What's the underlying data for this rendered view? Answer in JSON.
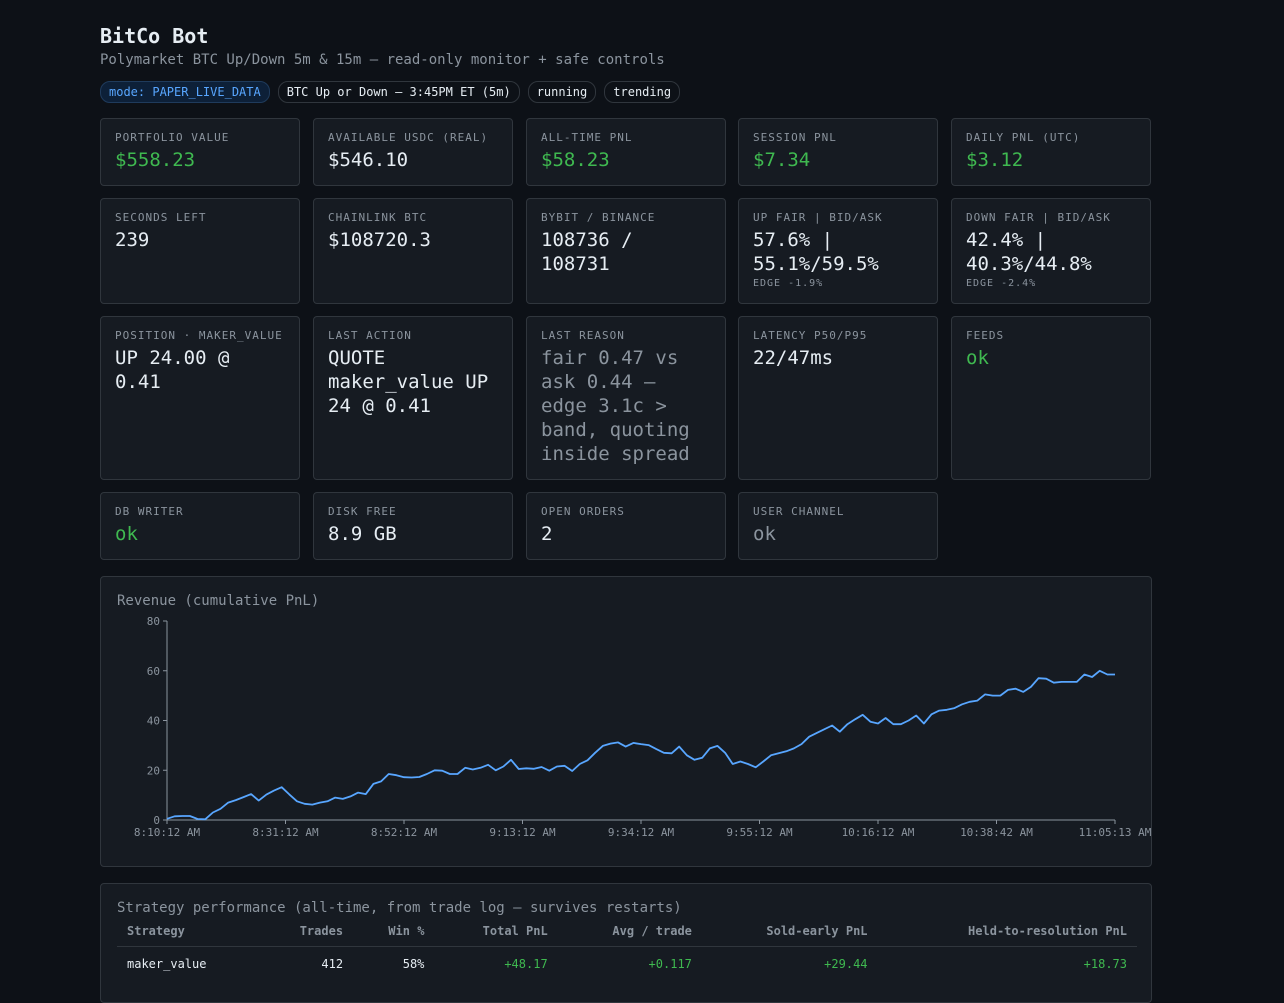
{
  "header": {
    "title": "BitCo Bot",
    "subtitle": "Polymarket BTC Up/Down 5m & 15m — read-only monitor + safe controls",
    "badges": [
      "mode: PAPER_LIVE_DATA",
      "BTC Up or Down — 3:45PM ET (5m)",
      "running",
      "trending"
    ]
  },
  "cards": {
    "portfolio_value": {
      "label": "PORTFOLIO VALUE",
      "value": "$558.23"
    },
    "available_usdc": {
      "label": "AVAILABLE USDC (REAL)",
      "value": "$546.10"
    },
    "all_time_pnl": {
      "label": "ALL-TIME PNL",
      "value": "$58.23"
    },
    "session_pnl": {
      "label": "SESSION PNL",
      "value": "$7.34"
    },
    "daily_pnl": {
      "label": "DAILY PNL (UTC)",
      "value": "$3.12"
    },
    "seconds_left": {
      "label": "SECONDS LEFT",
      "value": "239"
    },
    "chainlink_btc": {
      "label": "CHAINLINK BTC",
      "value": "$108720.3"
    },
    "bybit_binance": {
      "label": "BYBIT / BINANCE",
      "value": "108736 / 108731"
    },
    "up_fair": {
      "label": "UP FAIR | BID/ASK",
      "value": "57.6% | 55.1%/59.5%",
      "sub": "EDGE -1.9%"
    },
    "down_fair": {
      "label": "DOWN FAIR | BID/ASK",
      "value": "42.4% | 40.3%/44.8%",
      "sub": "EDGE -2.4%"
    },
    "position": {
      "label": "POSITION · MAKER_VALUE",
      "value": "UP 24.00 @ 0.41"
    },
    "last_action": {
      "label": "LAST ACTION",
      "value": "QUOTE maker_value UP 24 @ 0.41"
    },
    "last_reason": {
      "label": "LAST REASON",
      "value": "fair 0.47 vs ask 0.44 — edge 3.1c > band, quoting inside spread"
    },
    "latency": {
      "label": "LATENCY P50/P95",
      "value": "22/47ms"
    },
    "feeds": {
      "label": "FEEDS",
      "value": "ok"
    },
    "db_writer": {
      "label": "DB WRITER",
      "value": "ok"
    },
    "disk_free": {
      "label": "DISK FREE",
      "value": "8.9 GB"
    },
    "open_orders": {
      "label": "OPEN ORDERS",
      "value": "2"
    },
    "user_channel": {
      "label": "USER CHANNEL",
      "value": "ok"
    }
  },
  "colors": {
    "green": "#3fb950",
    "line": "#58a6ff",
    "bg": "#0d1117",
    "panel": "#161b22",
    "border": "#30363d",
    "muted": "#8b949e"
  },
  "chart_data": {
    "type": "line",
    "title": "Revenue (cumulative PnL)",
    "ylim": [
      0,
      80
    ],
    "yticks": [
      0,
      20,
      40,
      60,
      80
    ],
    "xticks": [
      "8:10:12 AM",
      "8:31:12 AM",
      "8:52:12 AM",
      "9:13:12 AM",
      "9:34:12 AM",
      "9:55:12 AM",
      "10:16:12 AM",
      "10:38:42 AM",
      "11:05:13 AM"
    ],
    "series": [
      {
        "values": [
          0.5,
          1.5,
          1.6,
          1.6,
          0.4,
          0.3,
          3,
          4.5,
          7,
          8,
          9.2,
          10.4,
          7.8,
          10.2,
          11.8,
          13.2,
          10.3,
          7.5,
          6.5,
          6.2,
          7,
          7.5,
          9,
          8.5,
          9.5,
          11,
          10.4,
          14.5,
          15.5,
          18.5,
          18,
          17.2,
          17.1,
          17.3,
          18.5,
          20,
          19.8,
          18.5,
          18.5,
          21,
          20.3,
          21,
          22.2,
          20,
          21.5,
          24.2,
          20.5,
          20.8,
          20.6,
          21.3,
          19.8,
          21.5,
          21.8,
          19.7,
          22.5,
          24,
          27,
          29.8,
          30.7,
          31.2,
          29.5,
          31,
          30.5,
          30.1,
          28.5,
          27,
          26.8,
          29.5,
          26,
          24.2,
          25,
          28.8,
          29.8,
          27,
          22.5,
          23.5,
          22.5,
          21.2,
          23.5,
          26,
          26.8,
          27.6,
          28.8,
          30.5,
          33.5,
          35,
          36.5,
          38,
          35.5,
          38.5,
          40.5,
          42.3,
          39.5,
          38.8,
          41,
          38.5,
          38.5,
          40,
          42,
          38.8,
          42.5,
          44,
          44.3,
          45,
          46.5,
          47.5,
          48,
          50.5,
          50,
          50,
          52.3,
          52.8,
          51.5,
          53.5,
          57,
          56.8,
          55.2,
          55.5,
          55.5,
          55.5,
          58.5,
          57.5,
          60,
          58.5,
          58.5
        ]
      }
    ]
  },
  "performance": {
    "title": "Strategy performance (all-time, from trade log — survives restarts)",
    "columns": [
      "Strategy",
      "Trades",
      "Win %",
      "Total PnL",
      "Avg / trade",
      "Sold-early PnL",
      "Held-to-resolution PnL"
    ],
    "rows": [
      [
        "maker_value",
        "412",
        "58%",
        "+48.17",
        "+0.117",
        "+29.44",
        "+18.73"
      ]
    ]
  }
}
